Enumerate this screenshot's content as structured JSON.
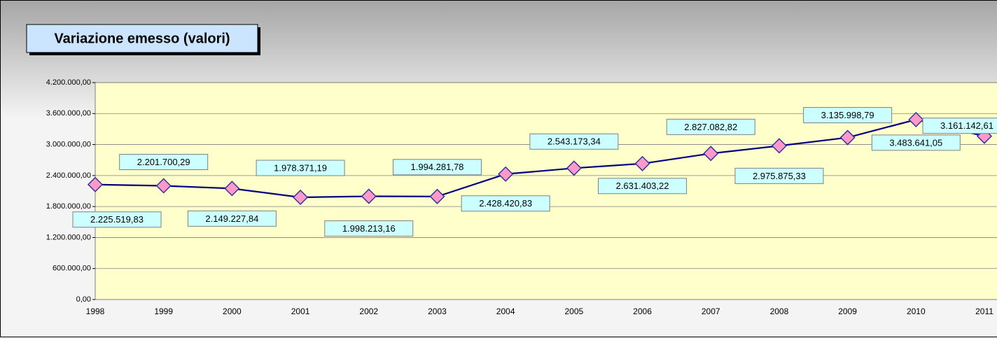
{
  "chart_data": {
    "type": "line",
    "title": "Variazione emesso (valori)",
    "categories": [
      "1998",
      "1999",
      "2000",
      "2001",
      "2002",
      "2003",
      "2004",
      "2005",
      "2006",
      "2007",
      "2008",
      "2009",
      "2010",
      "2011"
    ],
    "values": [
      2225519.83,
      2201700.29,
      2149227.84,
      1978371.19,
      1998213.16,
      1994281.78,
      2428420.83,
      2543173.34,
      2631403.22,
      2827082.82,
      2975875.33,
      3135998.79,
      3483641.05,
      3161142.61
    ],
    "value_labels": [
      "2.225.519,83",
      "2.201.700,29",
      "2.149.227,84",
      "1.978.371,19",
      "1.998.213,16",
      "1.994.281,78",
      "2.428.420,83",
      "2.543.173,34",
      "2.631.403,22",
      "2.827.082,82",
      "2.975.875,33",
      "3.135.998,79",
      "3.483.641,05",
      "3.161.142,61"
    ],
    "color": "#000080",
    "marker_color": "#ff99cc",
    "ylim": [
      0,
      4200000
    ],
    "yticks": [
      {
        "value": 0,
        "label": "0,00"
      },
      {
        "value": 600000,
        "label": "600.000,00"
      },
      {
        "value": 1200000,
        "label": "1.200.000,00"
      },
      {
        "value": 1800000,
        "label": "1.800.000,00"
      },
      {
        "value": 2400000,
        "label": "2.400.000,00"
      },
      {
        "value": 3000000,
        "label": "3.000.000,00"
      },
      {
        "value": 3600000,
        "label": "3.600.000,00"
      },
      {
        "value": 4200000,
        "label": "4.200.000,00"
      }
    ],
    "grid": true
  }
}
